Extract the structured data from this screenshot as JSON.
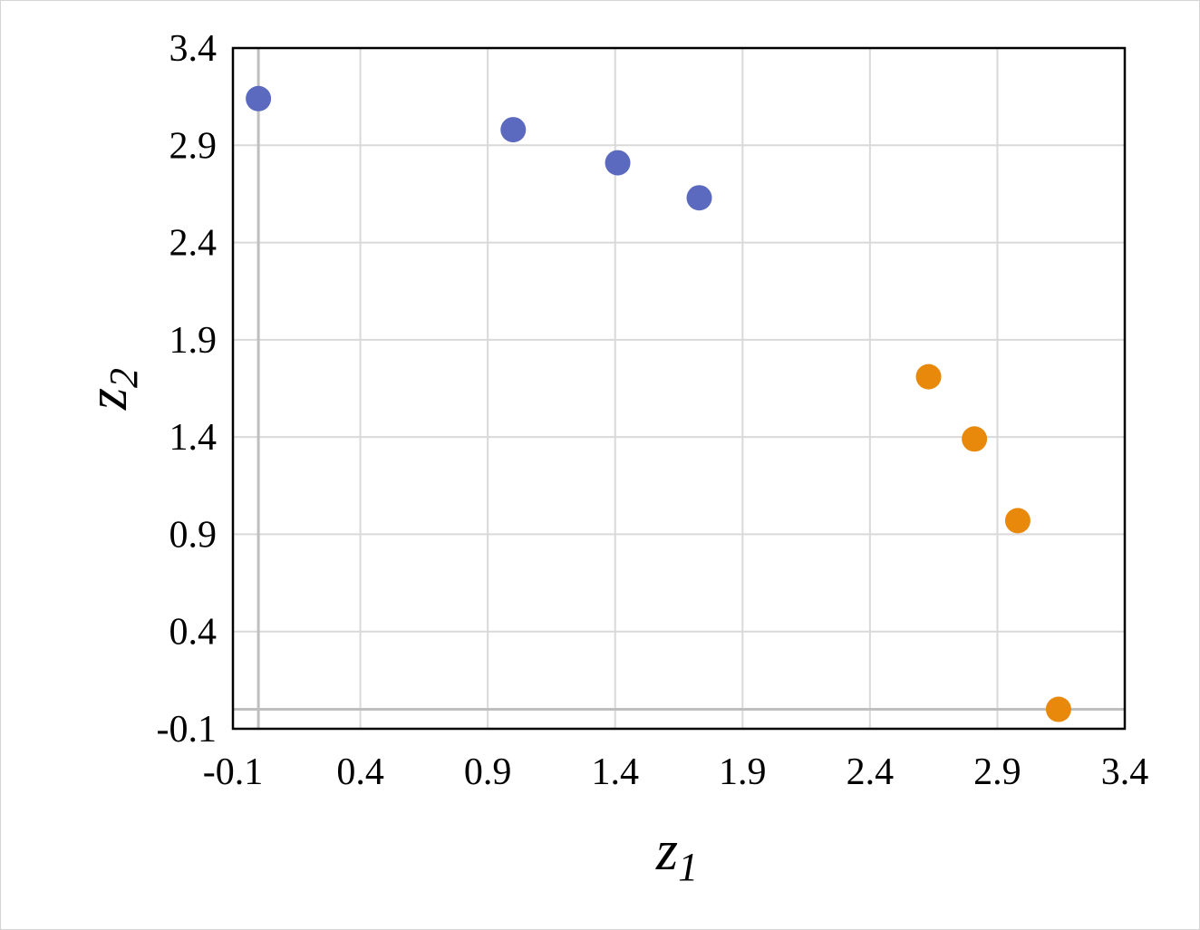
{
  "chart_data": {
    "type": "scatter",
    "title": "",
    "xlabel": "z",
    "xlabel_sub": "1",
    "ylabel": "z",
    "ylabel_sub": "2",
    "xlim": [
      -0.1,
      3.4
    ],
    "ylim": [
      -0.1,
      3.4
    ],
    "xticks": [
      -0.1,
      0.4,
      0.9,
      1.4,
      1.9,
      2.4,
      2.9,
      3.4
    ],
    "yticks": [
      -0.1,
      0.4,
      0.9,
      1.4,
      1.9,
      2.4,
      2.9,
      3.4
    ],
    "xtick_labels": [
      "-0.1",
      "0.4",
      "0.9",
      "1.4",
      "1.9",
      "2.4",
      "2.9",
      "3.4"
    ],
    "ytick_labels": [
      "-0.1",
      "0.4",
      "0.9",
      "1.4",
      "1.9",
      "2.4",
      "2.9",
      "3.4"
    ],
    "grid": true,
    "legend": "none",
    "series": [
      {
        "color": "#5b6abf",
        "points": [
          {
            "x": 0.0,
            "y": 3.14
          },
          {
            "x": 1.0,
            "y": 2.98
          },
          {
            "x": 1.41,
            "y": 2.81
          },
          {
            "x": 1.73,
            "y": 2.63
          }
        ]
      },
      {
        "color": "#e8890c",
        "points": [
          {
            "x": 2.63,
            "y": 1.71
          },
          {
            "x": 2.81,
            "y": 1.39
          },
          {
            "x": 2.98,
            "y": 0.97
          },
          {
            "x": 3.14,
            "y": 0.0
          }
        ]
      }
    ]
  }
}
